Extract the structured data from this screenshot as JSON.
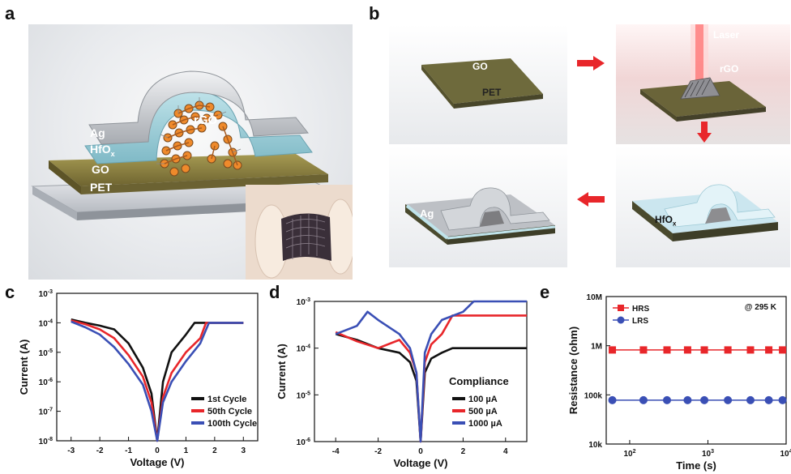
{
  "panel_labels": {
    "a": "a",
    "b": "b",
    "c": "c",
    "d": "d",
    "e": "e"
  },
  "panel_a": {
    "labels": {
      "ag": "Ag",
      "hfo": "HfO",
      "hfo_sub": "x",
      "go": "GO",
      "pet": "PET",
      "rgo": "rGO"
    }
  },
  "panel_b": {
    "step1": {
      "go": "GO",
      "pet": "PET"
    },
    "step2": {
      "laser": "Laser",
      "rgo": "rGO"
    },
    "step3": {
      "hfo": "HfO",
      "hfo_sub": "x"
    },
    "step4": {
      "ag": "Ag"
    }
  },
  "colors": {
    "black": "#111111",
    "red": "#e8262a",
    "blue": "#3a4fb5",
    "arrow": "#e8262a"
  },
  "chart_data": [
    {
      "id": "c",
      "type": "line",
      "xlabel": "Voltage (V)",
      "ylabel": "Current (A)",
      "xlim": [
        -3.5,
        3.5
      ],
      "xticks": [
        "-3",
        "-2",
        "-1",
        "0",
        "1",
        "2",
        "3"
      ],
      "ylog": true,
      "ylim_exp": [
        -8,
        -3
      ],
      "ytick_labels": [
        "10-8",
        "10-7",
        "10-6",
        "10-5",
        "10-4",
        "10-3"
      ],
      "legend": "bottom-right",
      "series": [
        {
          "name": "1st Cycle",
          "color": "#111111",
          "x": [
            -3,
            -2.5,
            -2,
            -1.5,
            -1,
            -0.5,
            -0.2,
            0,
            0.2,
            0.5,
            1,
            1.3,
            1.6,
            2,
            2.5,
            3
          ],
          "y": [
            0.00013,
            0.0001,
            8e-05,
            6e-05,
            2e-05,
            3e-06,
            4e-07,
            1e-08,
            1e-06,
            1e-05,
            4e-05,
            0.0001,
            0.0001,
            0.0001,
            0.0001,
            0.0001
          ]
        },
        {
          "name": "50th Cycle",
          "color": "#e8262a",
          "x": [
            -3,
            -2.5,
            -2,
            -1.5,
            -1,
            -0.5,
            -0.2,
            0,
            0.2,
            0.5,
            1,
            1.5,
            1.7,
            2,
            2.5,
            3
          ],
          "y": [
            0.00012,
            9e-05,
            6e-05,
            3e-05,
            8e-06,
            1.5e-06,
            2e-07,
            1e-08,
            3e-07,
            2e-06,
            1e-05,
            3e-05,
            0.0001,
            0.0001,
            0.0001,
            0.0001
          ]
        },
        {
          "name": "100th Cycle",
          "color": "#3a4fb5",
          "x": [
            -3,
            -2.5,
            -2,
            -1.5,
            -1,
            -0.5,
            -0.2,
            0,
            0.2,
            0.5,
            1,
            1.5,
            1.8,
            2,
            2.5,
            3
          ],
          "y": [
            0.00011,
            7e-05,
            4e-05,
            1.5e-05,
            4e-06,
            8e-07,
            1e-07,
            1e-08,
            2e-07,
            1e-06,
            5e-06,
            2e-05,
            0.0001,
            0.0001,
            0.0001,
            0.0001
          ]
        }
      ]
    },
    {
      "id": "d",
      "type": "line",
      "xlabel": "Voltage (V)",
      "ylabel": "Current (A)",
      "xlim": [
        -5,
        5
      ],
      "xticks": [
        "-4",
        "-2",
        "0",
        "2",
        "4"
      ],
      "ylog": true,
      "ylim_exp": [
        -6,
        -3
      ],
      "ytick_labels": [
        "10-6",
        "10-5",
        "10-4",
        "10-3"
      ],
      "legend_title": "Compliance",
      "legend": "bottom-right",
      "series": [
        {
          "name": "100 µA",
          "color": "#111111",
          "x": [
            -4,
            -3,
            -2,
            -1,
            -0.5,
            -0.2,
            0,
            0.2,
            0.5,
            1,
            1.5,
            2,
            3,
            4,
            5
          ],
          "y": [
            0.0002,
            0.00015,
            0.0001,
            8e-05,
            5e-05,
            2e-05,
            1e-06,
            3e-05,
            6e-05,
            8e-05,
            0.0001,
            0.0001,
            0.0001,
            0.0001,
            0.0001
          ]
        },
        {
          "name": "500 µA",
          "color": "#e8262a",
          "x": [
            -4,
            -3,
            -2,
            -1,
            -0.5,
            -0.2,
            0,
            0.2,
            0.5,
            1,
            1.5,
            2,
            3,
            4,
            5
          ],
          "y": [
            0.00022,
            0.00014,
            0.0001,
            0.00015,
            8e-05,
            3e-05,
            1e-06,
            5e-05,
            0.00012,
            0.0002,
            0.0005,
            0.0005,
            0.0005,
            0.0005,
            0.0005
          ]
        },
        {
          "name": "1000 µA",
          "color": "#3a4fb5",
          "x": [
            -4,
            -3,
            -2.5,
            -2,
            -1,
            -0.5,
            -0.2,
            0,
            0.2,
            0.5,
            1,
            2,
            2.5,
            3,
            4,
            5
          ],
          "y": [
            0.0002,
            0.0003,
            0.0006,
            0.0004,
            0.0002,
            0.0001,
            3e-05,
            1e-06,
            8e-05,
            0.0002,
            0.0004,
            0.0006,
            0.001,
            0.001,
            0.001,
            0.001
          ]
        }
      ]
    },
    {
      "id": "e",
      "type": "scatter",
      "xlabel": "Time (s)",
      "ylabel": "Resistance (ohm)",
      "xlog": true,
      "xlim_exp": [
        1.7,
        4.0
      ],
      "xtick_labels": [
        "10^2",
        "10^3",
        "10^4"
      ],
      "ylog": true,
      "ylim_exp": [
        4,
        7
      ],
      "ytick_labels": [
        "10k",
        "100k",
        "1M",
        "10M"
      ],
      "annotation": "@ 295 K",
      "legend": "top-left",
      "series": [
        {
          "name": "HRS",
          "color": "#e8262a",
          "marker": "square",
          "x": [
            60,
            150,
            300,
            550,
            900,
            1800,
            3500,
            6000,
            9000
          ],
          "y": [
            820000,
            820000,
            820000,
            820000,
            820000,
            820000,
            820000,
            820000,
            820000
          ]
        },
        {
          "name": "LRS",
          "color": "#3a4fb5",
          "marker": "circle",
          "x": [
            60,
            150,
            300,
            550,
            900,
            1800,
            3500,
            6000,
            9000
          ],
          "y": [
            78000,
            78000,
            78000,
            78000,
            78000,
            78000,
            78000,
            78000,
            78000
          ]
        }
      ]
    }
  ]
}
